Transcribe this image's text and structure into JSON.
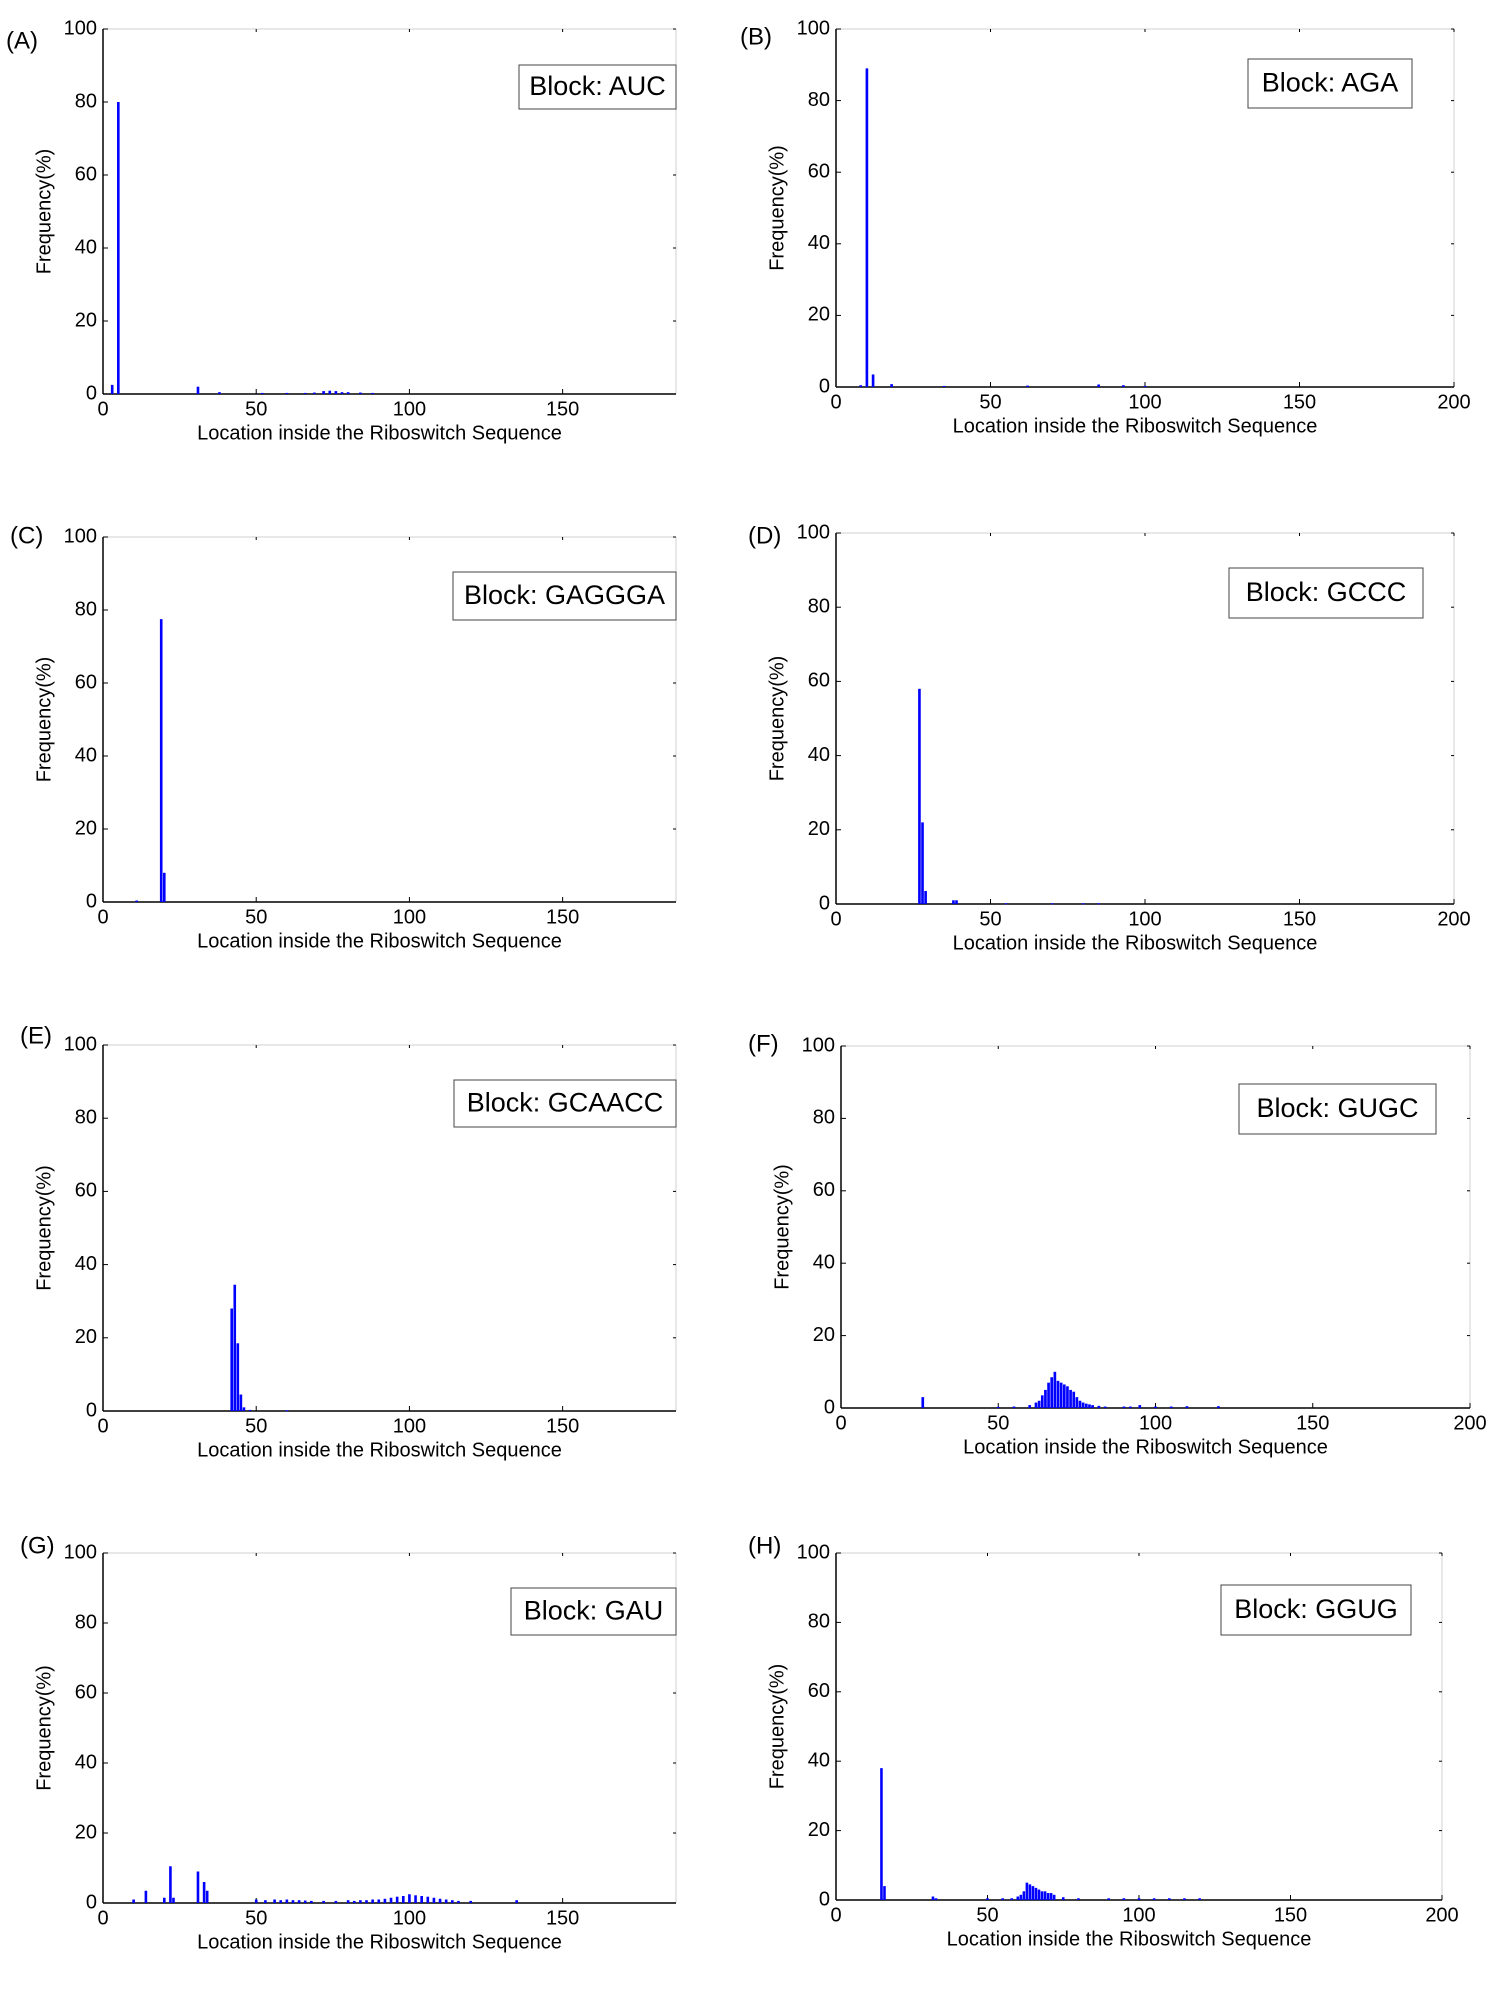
{
  "panel_order": [
    "A",
    "B",
    "C",
    "D",
    "E",
    "F",
    "G",
    "H"
  ],
  "chart_data": [
    {
      "panel_label": "(A)",
      "type": "bar",
      "legend_text": "Block: AUC",
      "legend_position": "top-right",
      "xlabel": "Location inside the Riboswitch Sequence",
      "ylabel": "Frequency(%)",
      "xlim": [
        0,
        187
      ],
      "ylim": [
        0,
        100
      ],
      "xticks": [
        0,
        50,
        100,
        150
      ],
      "yticks": [
        0,
        20,
        40,
        60,
        80,
        100
      ],
      "grid": false,
      "color": "#0000ff",
      "x": [
        3,
        5,
        31,
        38,
        52,
        60,
        66,
        69,
        72,
        74,
        76,
        78,
        80,
        84,
        88
      ],
      "y": [
        2.5,
        80,
        2,
        0.5,
        0.3,
        0.3,
        0.3,
        0.4,
        0.8,
        0.9,
        0.8,
        0.5,
        0.5,
        0.4,
        0.3
      ]
    },
    {
      "panel_label": "(B)",
      "type": "bar",
      "legend_text": "Block: AGA",
      "legend_position": "top-right",
      "xlabel": "Location inside the Riboswitch Sequence",
      "ylabel": "Frequency(%)",
      "xlim": [
        0,
        200
      ],
      "ylim": [
        0,
        100
      ],
      "xticks": [
        0,
        50,
        100,
        150,
        200
      ],
      "yticks": [
        0,
        20,
        40,
        60,
        80,
        100
      ],
      "grid": false,
      "color": "#0000ff",
      "x": [
        8,
        10,
        12,
        18,
        35,
        62,
        85,
        93,
        100
      ],
      "y": [
        0.5,
        89,
        3.5,
        0.8,
        0.3,
        0.4,
        0.7,
        0.5,
        0.3
      ]
    },
    {
      "panel_label": "(C)",
      "type": "bar",
      "legend_text": "Block: GAGGGA",
      "legend_position": "top-right",
      "xlabel": "Location inside the Riboswitch Sequence",
      "ylabel": "Frequency(%)",
      "xlim": [
        0,
        187
      ],
      "ylim": [
        0,
        100
      ],
      "xticks": [
        0,
        50,
        100,
        150
      ],
      "yticks": [
        0,
        20,
        40,
        60,
        80,
        100
      ],
      "grid": false,
      "color": "#0000ff",
      "x": [
        11,
        19,
        20
      ],
      "y": [
        0.4,
        77.5,
        8
      ]
    },
    {
      "panel_label": "(D)",
      "type": "bar",
      "legend_text": "Block: GCCC",
      "legend_position": "top-right",
      "xlabel": "Location inside the Riboswitch Sequence",
      "ylabel": "Frequency(%)",
      "xlim": [
        0,
        200
      ],
      "ylim": [
        0,
        100
      ],
      "xticks": [
        0,
        50,
        100,
        150,
        200
      ],
      "yticks": [
        0,
        20,
        40,
        60,
        80,
        100
      ],
      "grid": false,
      "color": "#0000ff",
      "x": [
        27,
        28,
        29,
        38,
        39,
        55,
        70,
        80,
        85
      ],
      "y": [
        58,
        22,
        3.5,
        1,
        1,
        0.2,
        0.2,
        0.2,
        0.2
      ]
    },
    {
      "panel_label": "(E)",
      "type": "bar",
      "legend_text": "Block: GCAACC",
      "legend_position": "top-right",
      "xlabel": "Location inside the Riboswitch Sequence",
      "ylabel": "Frequency(%)",
      "xlim": [
        0,
        187
      ],
      "ylim": [
        0,
        100
      ],
      "xticks": [
        0,
        50,
        100,
        150
      ],
      "yticks": [
        0,
        20,
        40,
        60,
        80,
        100
      ],
      "grid": false,
      "color": "#0000ff",
      "x": [
        42,
        43,
        44,
        45,
        46,
        48,
        60
      ],
      "y": [
        28,
        34.5,
        18.5,
        4.5,
        1,
        0.3,
        0.2
      ]
    },
    {
      "panel_label": "(F)",
      "type": "bar",
      "legend_text": "Block: GUGC",
      "legend_position": "top-right",
      "xlabel": "Location inside the Riboswitch Sequence",
      "ylabel": "Frequency(%)",
      "xlim": [
        0,
        200
      ],
      "ylim": [
        0,
        100
      ],
      "xticks": [
        0,
        50,
        100,
        150,
        200
      ],
      "yticks": [
        0,
        20,
        40,
        60,
        80,
        100
      ],
      "grid": false,
      "color": "#0000ff",
      "x": [
        26,
        50,
        55,
        60,
        62,
        63,
        64,
        65,
        66,
        67,
        68,
        69,
        70,
        71,
        72,
        73,
        74,
        75,
        76,
        77,
        78,
        79,
        80,
        82,
        84,
        90,
        92,
        95,
        100,
        105,
        110,
        120
      ],
      "y": [
        3,
        0.3,
        0.4,
        0.8,
        1.5,
        2,
        3.5,
        5,
        7,
        8.5,
        10,
        7.5,
        7,
        6.5,
        6,
        5,
        4.5,
        3,
        2,
        1.5,
        1.2,
        1,
        0.8,
        0.6,
        0.4,
        0.4,
        0.4,
        0.8,
        0.4,
        0.4,
        0.5,
        0.5
      ]
    },
    {
      "panel_label": "(G)",
      "type": "bar",
      "legend_text": "Block: GAU",
      "legend_position": "top-right",
      "xlabel": "Location inside the Riboswitch Sequence",
      "ylabel": "Frequency(%)",
      "xlim": [
        0,
        187
      ],
      "ylim": [
        0,
        100
      ],
      "xticks": [
        0,
        50,
        100,
        150
      ],
      "yticks": [
        0,
        20,
        40,
        60,
        80,
        100
      ],
      "grid": false,
      "color": "#0000ff",
      "x": [
        10,
        14,
        20,
        22,
        23,
        31,
        33,
        34,
        50,
        53,
        56,
        58,
        60,
        62,
        64,
        66,
        68,
        72,
        76,
        80,
        82,
        84,
        86,
        88,
        90,
        92,
        94,
        96,
        98,
        100,
        102,
        104,
        106,
        108,
        110,
        112,
        114,
        116,
        120,
        135
      ],
      "y": [
        1,
        3.5,
        1.5,
        10.5,
        1.5,
        9,
        6,
        3.5,
        1,
        0.8,
        1,
        0.8,
        1,
        0.8,
        0.8,
        0.7,
        0.6,
        0.6,
        0.6,
        0.8,
        0.6,
        0.8,
        0.8,
        1,
        1,
        1.2,
        1.5,
        1.8,
        2,
        2.5,
        2.2,
        2,
        1.8,
        1.5,
        1.2,
        1,
        0.8,
        0.6,
        0.6,
        0.8
      ]
    },
    {
      "panel_label": "(H)",
      "type": "bar",
      "legend_text": "Block: GGUG",
      "legend_position": "top-right",
      "xlabel": "Location inside the Riboswitch Sequence",
      "ylabel": "Frequency(%)",
      "xlim": [
        0,
        200
      ],
      "ylim": [
        0,
        100
      ],
      "xticks": [
        0,
        50,
        100,
        150,
        200
      ],
      "yticks": [
        0,
        20,
        40,
        60,
        80,
        100
      ],
      "grid": false,
      "color": "#0000ff",
      "x": [
        15,
        16,
        32,
        33,
        50,
        55,
        58,
        60,
        61,
        62,
        63,
        64,
        65,
        66,
        67,
        68,
        69,
        70,
        71,
        72,
        75,
        80,
        90,
        95,
        100,
        105,
        110,
        115,
        120
      ],
      "y": [
        38,
        4,
        1,
        0.5,
        0.5,
        0.5,
        0.5,
        1,
        1.5,
        2.5,
        5,
        4.5,
        4,
        3.5,
        3,
        2.5,
        2.5,
        2,
        2,
        1.5,
        0.8,
        0.5,
        0.5,
        0.5,
        0.5,
        0.5,
        0.5,
        0.5,
        0.5
      ]
    }
  ]
}
